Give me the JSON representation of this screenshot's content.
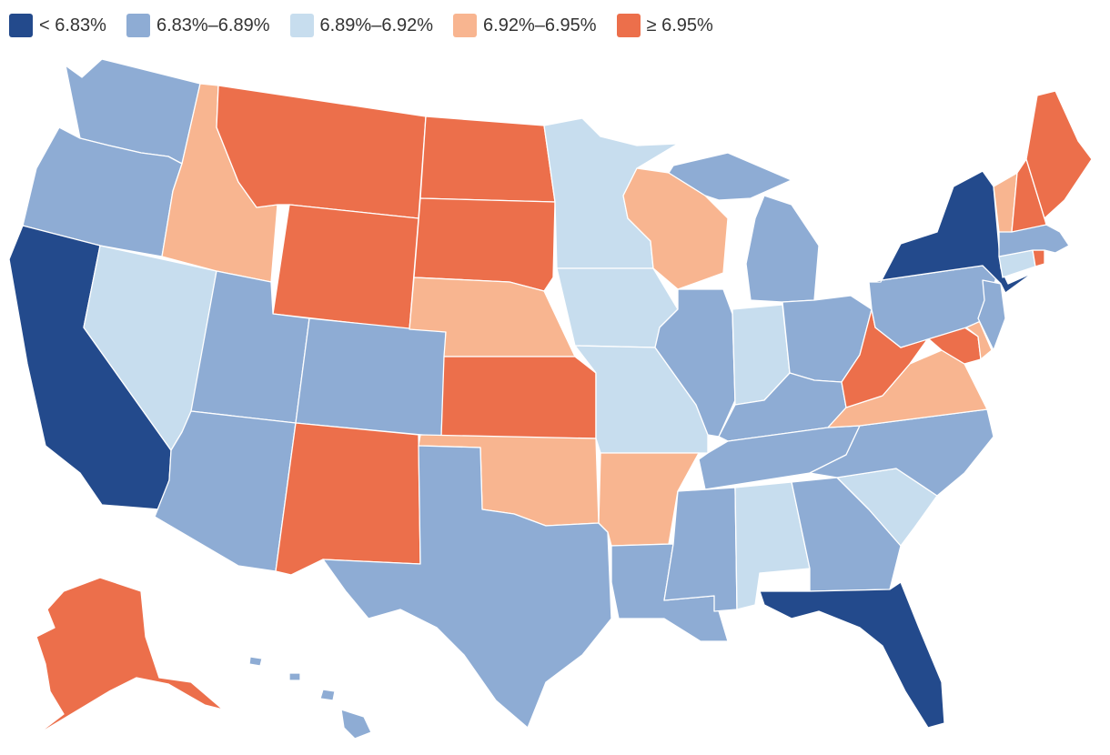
{
  "legend": [
    {
      "label": "< 6.83%",
      "color": "#234a8c"
    },
    {
      "label": "6.83%–6.89%",
      "color": "#8eacd4"
    },
    {
      "label": "6.89%–6.92%",
      "color": "#c7ddee"
    },
    {
      "label": "6.92%–6.95%",
      "color": "#f8b590"
    },
    {
      "label": "≥ 6.95%",
      "color": "#ec6f4b"
    }
  ],
  "states": {
    "WA": "6.83%–6.89%",
    "OR": "6.83%–6.89%",
    "CA": "< 6.83%",
    "NV": "6.89%–6.92%",
    "ID": "6.92%–6.95%",
    "MT": "≥ 6.95%",
    "WY": "≥ 6.95%",
    "UT": "6.83%–6.89%",
    "AZ": "6.83%–6.89%",
    "CO": "6.83%–6.89%",
    "NM": "≥ 6.95%",
    "ND": "≥ 6.95%",
    "SD": "≥ 6.95%",
    "NE": "6.92%–6.95%",
    "KS": "≥ 6.95%",
    "OK": "6.92%–6.95%",
    "TX": "6.83%–6.89%",
    "MN": "6.89%–6.92%",
    "IA": "6.89%–6.92%",
    "MO": "6.89%–6.92%",
    "AR": "6.92%–6.95%",
    "LA": "6.83%–6.89%",
    "WI": "6.92%–6.95%",
    "IL": "6.83%–6.89%",
    "MI": "6.83%–6.89%",
    "IN": "6.89%–6.92%",
    "OH": "6.83%–6.89%",
    "KY": "6.83%–6.89%",
    "TN": "6.83%–6.89%",
    "MS": "6.83%–6.89%",
    "AL": "6.89%–6.92%",
    "GA": "6.83%–6.89%",
    "FL": "< 6.83%",
    "SC": "6.89%–6.92%",
    "NC": "6.83%–6.89%",
    "VA": "6.92%–6.95%",
    "WV": "≥ 6.95%",
    "MD": "≥ 6.95%",
    "DE": "6.92%–6.95%",
    "PA": "6.83%–6.89%",
    "NJ": "6.83%–6.89%",
    "NY": "< 6.83%",
    "CT": "6.89%–6.92%",
    "RI": "≥ 6.95%",
    "MA": "6.83%–6.89%",
    "VT": "6.92%–6.95%",
    "NH": "≥ 6.95%",
    "ME": "≥ 6.95%",
    "AK": "≥ 6.95%",
    "HI": "6.83%–6.89%"
  }
}
